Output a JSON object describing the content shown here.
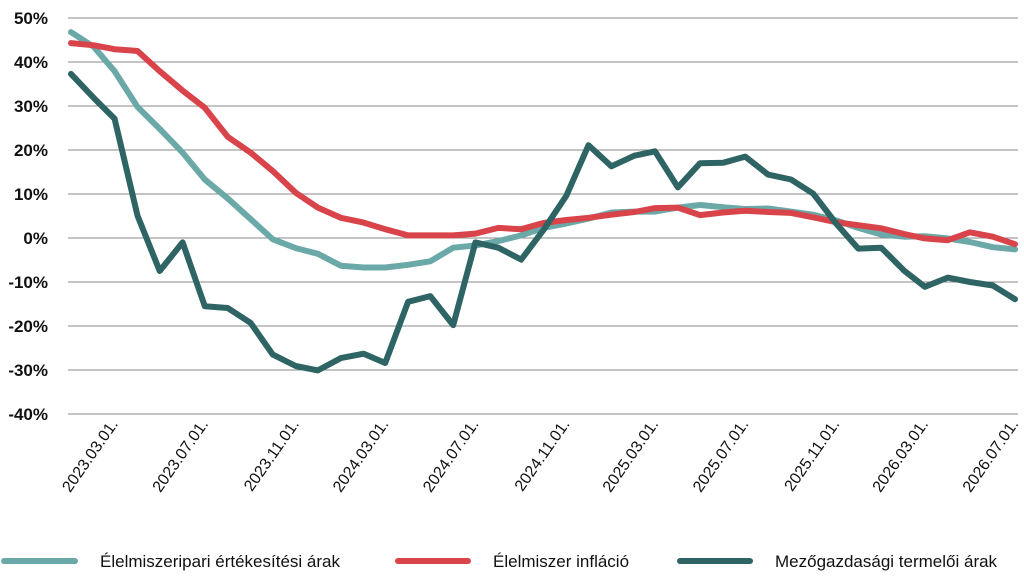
{
  "chart_data": {
    "type": "line",
    "title": "",
    "xlabel": "",
    "ylabel": "",
    "ylim": [
      -40,
      50
    ],
    "y_ticks": [
      50,
      40,
      30,
      20,
      10,
      0,
      -10,
      -20,
      -30,
      -40
    ],
    "y_tick_labels": [
      "50%",
      "40%",
      "30%",
      "20%",
      "10%",
      "0%",
      "-10%",
      "-20%",
      "-30%",
      "-40%"
    ],
    "y_tick_format": "percent",
    "grid": "horizontal",
    "legend_position": "bottom",
    "x_range": [
      "2023.01.01.",
      "2026.07.01."
    ],
    "x_ticks": [
      "2023.03.01.",
      "2023.07.01.",
      "2023.11.01.",
      "2024.03.01.",
      "2024.07.01.",
      "2024.11.01.",
      "2025.03.01.",
      "2025.07.01.",
      "2025.11.01.",
      "2026.03.01.",
      "2026.07.01."
    ],
    "colors": {
      "Élelmiszeripari értékesítési árak": "#6aa9a8",
      "Élelmiszer infláció": "#d9434a",
      "Mezőgazdasági termelői árak": "#2f6464"
    },
    "series": [
      {
        "name": "Élelmiszeripari értékesítési árak",
        "x": [
          "2023.01.01.",
          "2023.02.01.",
          "2023.03.01.",
          "2023.04.01.",
          "2023.05.01.",
          "2023.06.01.",
          "2023.07.01.",
          "2023.08.01.",
          "2023.09.01.",
          "2023.10.01.",
          "2023.11.01.",
          "2023.12.01.",
          "2024.01.01.",
          "2024.02.01.",
          "2024.03.01.",
          "2024.04.01.",
          "2024.05.01.",
          "2024.06.01.",
          "2024.07.01.",
          "2024.08.01.",
          "2024.09.01.",
          "2024.10.01.",
          "2024.11.01.",
          "2024.12.01.",
          "2025.01.01.",
          "2025.02.01.",
          "2025.03.01.",
          "2025.04.01.",
          "2025.05.01.",
          "2025.06.01.",
          "2025.07.01.",
          "2025.08.01.",
          "2025.09.01.",
          "2025.10.01.",
          "2025.11.01.",
          "2025.12.01.",
          "2026.01.01.",
          "2026.02.01.",
          "2026.03.01.",
          "2026.04.01.",
          "2026.05.01.",
          "2026.06.01.",
          "2026.07.01."
        ],
        "values": [
          46.8,
          43.4,
          37.9,
          29.8,
          24.8,
          19.4,
          13.3,
          9.0,
          4.3,
          -0.3,
          -2.3,
          -3.6,
          -6.3,
          -6.7,
          -6.7,
          -6.1,
          -5.3,
          -2.2,
          -1.7,
          -0.7,
          0.6,
          2.3,
          3.3,
          4.4,
          5.8,
          6.0,
          6.0,
          6.9,
          7.5,
          7.0,
          6.6,
          6.7,
          6.0,
          5.3,
          4.0,
          2.3,
          0.8,
          0.3,
          0.4,
          -0.1,
          -0.9,
          -2.1,
          -2.6
        ]
      },
      {
        "name": "Élelmiszer infláció",
        "x": [
          "2023.01.01.",
          "2023.02.01.",
          "2023.03.01.",
          "2023.04.01.",
          "2023.05.01.",
          "2023.06.01.",
          "2023.07.01.",
          "2023.08.01.",
          "2023.09.01.",
          "2023.10.01.",
          "2023.11.01.",
          "2023.12.01.",
          "2024.01.01.",
          "2024.02.01.",
          "2024.03.01.",
          "2024.04.01.",
          "2024.05.01.",
          "2024.06.01.",
          "2024.07.01.",
          "2024.08.01.",
          "2024.09.01.",
          "2024.10.01.",
          "2024.11.01.",
          "2024.12.01.",
          "2025.01.01.",
          "2025.02.01.",
          "2025.03.01.",
          "2025.04.01.",
          "2025.05.01.",
          "2025.06.01.",
          "2025.07.01.",
          "2025.08.01.",
          "2025.09.01.",
          "2025.10.01.",
          "2025.11.01.",
          "2025.12.01.",
          "2026.01.01.",
          "2026.02.01.",
          "2026.03.01.",
          "2026.04.01.",
          "2026.05.01.",
          "2026.06.01.",
          "2026.07.01."
        ],
        "values": [
          44.3,
          43.8,
          42.9,
          42.5,
          37.9,
          33.5,
          29.6,
          23.0,
          19.4,
          15.2,
          10.3,
          6.9,
          4.6,
          3.5,
          2.0,
          0.6,
          0.6,
          0.6,
          1.0,
          2.3,
          2.0,
          3.4,
          4.1,
          4.6,
          5.3,
          5.9,
          6.8,
          6.9,
          5.2,
          5.8,
          6.2,
          5.9,
          5.7,
          4.7,
          3.6,
          2.9,
          2.2,
          0.9,
          -0.1,
          -0.5,
          1.3,
          0.3,
          -1.4
        ]
      },
      {
        "name": "Mezőgazdasági termelői árak",
        "x": [
          "2023.01.01.",
          "2023.02.01.",
          "2023.03.01.",
          "2023.04.01.",
          "2023.05.01.",
          "2023.06.01.",
          "2023.07.01.",
          "2023.08.01.",
          "2023.09.01.",
          "2023.10.01.",
          "2023.11.01.",
          "2023.12.01.",
          "2024.01.01.",
          "2024.02.01.",
          "2024.03.01.",
          "2024.04.01.",
          "2024.05.01.",
          "2024.06.01.",
          "2024.07.01.",
          "2024.08.01.",
          "2024.09.01.",
          "2024.10.01.",
          "2024.11.01.",
          "2024.12.01.",
          "2025.01.01.",
          "2025.02.01.",
          "2025.03.01.",
          "2025.04.01.",
          "2025.05.01.",
          "2025.06.01.",
          "2025.07.01.",
          "2025.08.01.",
          "2025.09.01.",
          "2025.10.01.",
          "2025.11.01.",
          "2025.12.01.",
          "2026.01.01.",
          "2026.02.01.",
          "2026.03.01.",
          "2026.04.01.",
          "2026.05.01.",
          "2026.06.01.",
          "2026.07.01."
        ],
        "values": [
          37.3,
          31.8,
          27.1,
          5.1,
          -7.5,
          -1.0,
          -15.5,
          -15.9,
          -19.3,
          -26.5,
          -29.1,
          -30.1,
          -27.3,
          -26.3,
          -28.4,
          -14.5,
          -13.2,
          -19.8,
          -1.0,
          -2.2,
          -4.9,
          1.8,
          9.6,
          21.1,
          16.3,
          18.7,
          19.7,
          11.5,
          17.0,
          17.1,
          18.5,
          14.4,
          13.3,
          10.1,
          3.3,
          -2.4,
          -2.2,
          -7.4,
          -11.1,
          -9.0,
          -10.0,
          -10.8,
          -13.9
        ]
      }
    ]
  }
}
